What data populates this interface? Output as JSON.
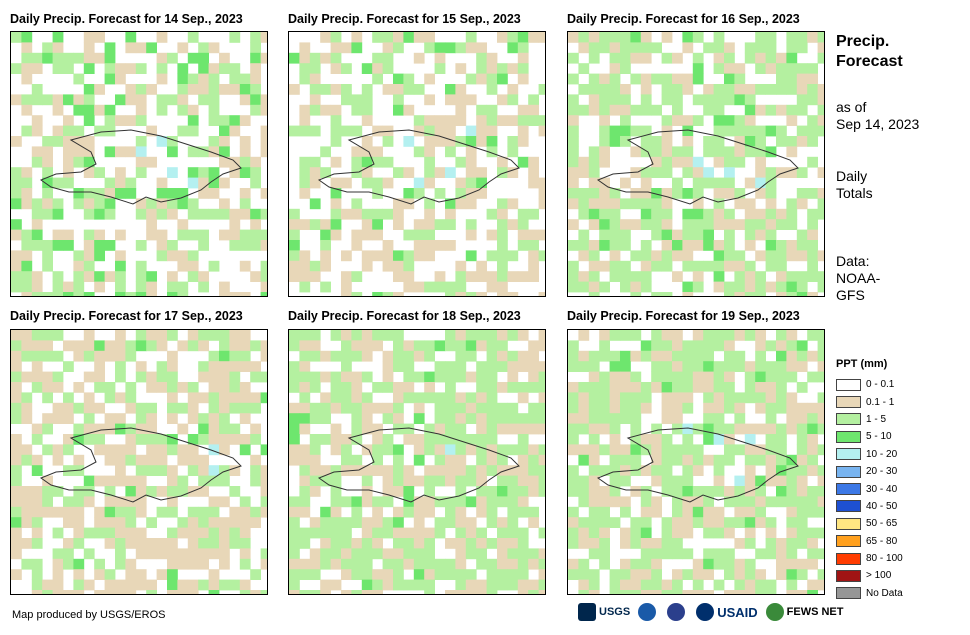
{
  "panels": [
    {
      "title": "Daily Precip. Forecast for 14 Sep., 2023"
    },
    {
      "title": "Daily Precip. Forecast for 15 Sep., 2023"
    },
    {
      "title": "Daily Precip. Forecast for 16 Sep., 2023"
    },
    {
      "title": "Daily Precip. Forecast for 17 Sep., 2023"
    },
    {
      "title": "Daily Precip. Forecast for 18 Sep., 2023"
    },
    {
      "title": "Daily Precip. Forecast for 19 Sep., 2023"
    }
  ],
  "sidebar": {
    "title_line1": "Precip.",
    "title_line2": "Forecast",
    "asof_line1": "as of",
    "asof_line2": "Sep 14, 2023",
    "daily_line1": "Daily",
    "daily_line2": "Totals",
    "data_line1": "Data:",
    "data_line2": "NOAA-",
    "data_line3": "GFS"
  },
  "legend": {
    "title": "PPT (mm)",
    "items": [
      {
        "label": "0 - 0.1",
        "color": "#ffffff"
      },
      {
        "label": "0.1 - 1",
        "color": "#e8d7b8"
      },
      {
        "label": "1 - 5",
        "color": "#b4f0a0"
      },
      {
        "label": "5 - 10",
        "color": "#6ee66e"
      },
      {
        "label": "10 - 20",
        "color": "#b4f0f0"
      },
      {
        "label": "20 - 30",
        "color": "#78b4f0"
      },
      {
        "label": "30 - 40",
        "color": "#3c78e6"
      },
      {
        "label": "40 - 50",
        "color": "#1e50d2"
      },
      {
        "label": "50 - 65",
        "color": "#ffe682"
      },
      {
        "label": "65 - 80",
        "color": "#ffa01e"
      },
      {
        "label": "80 - 100",
        "color": "#ff3c00"
      },
      {
        "label": "> 100",
        "color": "#a01414"
      },
      {
        "label": "No Data",
        "color": "#969696"
      }
    ]
  },
  "footer": {
    "credit": "Map produced by USGS/EROS",
    "logo_usgs": "USGS",
    "logo_usaid": "USAID",
    "logo_fews": "FEWS NET"
  }
}
